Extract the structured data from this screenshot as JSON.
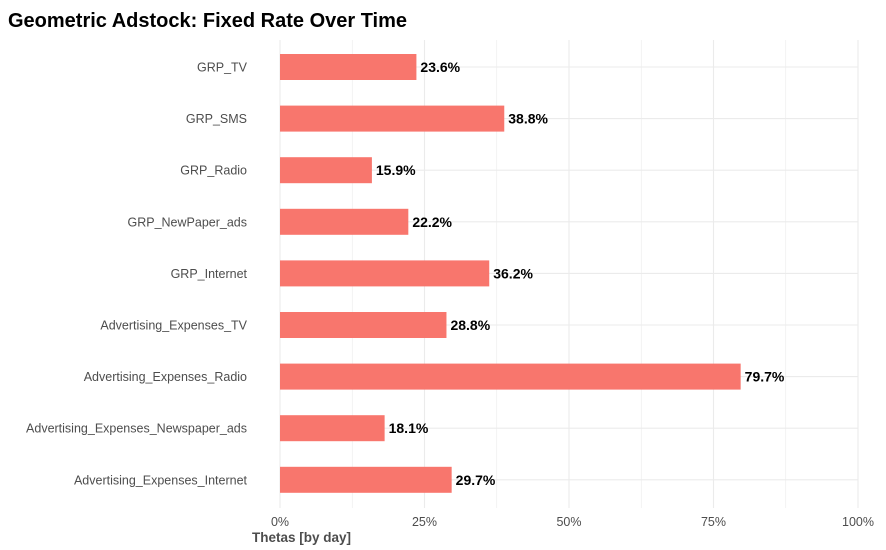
{
  "chart_data": {
    "type": "bar",
    "orientation": "horizontal",
    "title": "Geometric Adstock: Fixed Rate Over Time",
    "xlabel": "Thetas [by day]",
    "ylabel": "",
    "categories": [
      "GRP_TV",
      "GRP_SMS",
      "GRP_Radio",
      "GRP_NewPaper_ads",
      "GRP_Internet",
      "Advertising_Expenses_TV",
      "Advertising_Expenses_Radio",
      "Advertising_Expenses_Newspaper_ads",
      "Advertising_Expenses_Internet"
    ],
    "values": [
      23.6,
      38.8,
      15.9,
      22.2,
      36.2,
      28.8,
      79.7,
      18.1,
      29.7
    ],
    "data_labels": [
      "23.6%",
      "38.8%",
      "15.9%",
      "22.2%",
      "36.2%",
      "28.8%",
      "79.7%",
      "18.1%",
      "29.7%"
    ],
    "xlim": [
      0,
      100
    ],
    "x_ticks": [
      0,
      25,
      50,
      75,
      100
    ],
    "x_tick_labels": [
      "0%",
      "25%",
      "50%",
      "75%",
      "100%"
    ],
    "grid": true,
    "legend": "none",
    "colors": {
      "bar": "#f8766d",
      "grid": "#ebebeb",
      "text": "#4d4d4d",
      "title": "#000000"
    }
  }
}
